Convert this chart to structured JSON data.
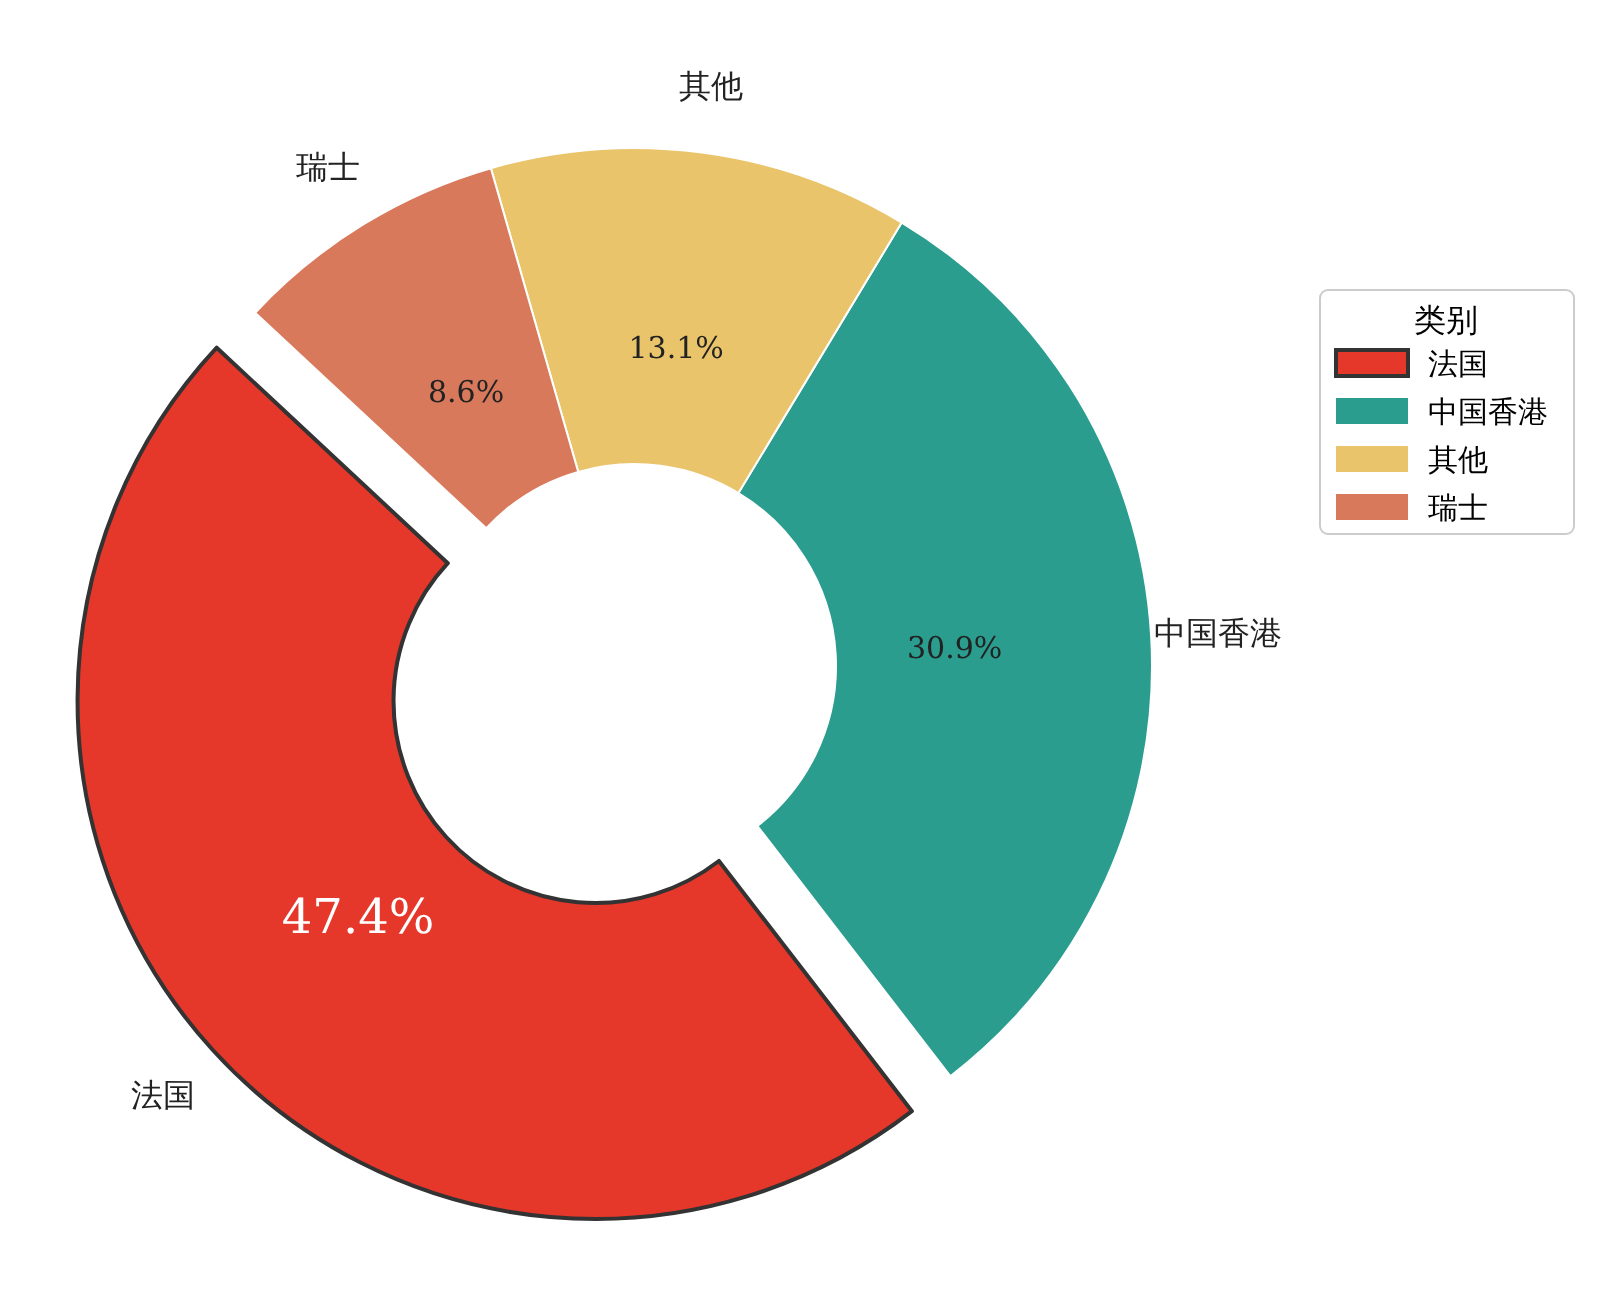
{
  "chart_data": {
    "type": "donut",
    "categories": [
      "法国",
      "中国香港",
      "其他",
      "瑞士"
    ],
    "values": [
      47.4,
      30.9,
      13.1,
      8.6
    ],
    "colors": [
      "#e5382b",
      "#2a9d8f",
      "#e9c46a",
      "#d9795b"
    ],
    "value_labels": [
      "47.4%",
      "30.9%",
      "13.1%",
      "8.6%"
    ],
    "legend": "right",
    "legend_title": "类别"
  }
}
